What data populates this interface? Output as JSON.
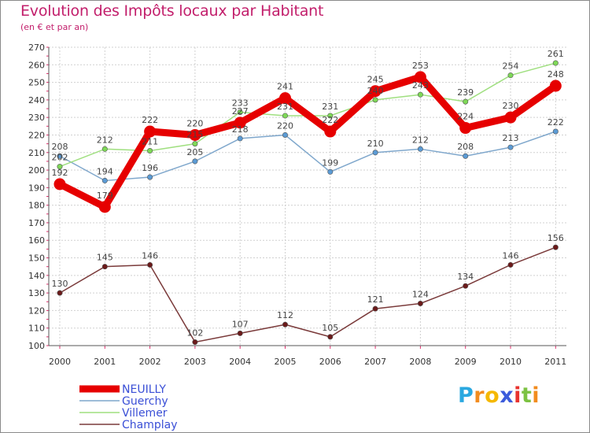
{
  "chart_data": {
    "type": "line",
    "title": "Evolution des Impôts locaux par Habitant",
    "subtitle": "(en € et par an)",
    "xlabel": "",
    "ylabel": "",
    "ylim": [
      100,
      270
    ],
    "yticks": [
      100,
      110,
      120,
      130,
      140,
      150,
      160,
      170,
      180,
      190,
      200,
      210,
      220,
      230,
      240,
      250,
      260,
      270
    ],
    "categories": [
      "2000",
      "2001",
      "2002",
      "2003",
      "2004",
      "2005",
      "2006",
      "2007",
      "2008",
      "2009",
      "2010",
      "2011"
    ],
    "grid": true,
    "legend_position": "bottom-left",
    "series": [
      {
        "name": "Guerchy",
        "color": "#5b9bd5",
        "line_color": "#7fa7cc",
        "values": [
          208,
          194,
          196,
          205,
          218,
          220,
          199,
          210,
          212,
          208,
          213,
          222
        ]
      },
      {
        "name": "Villemer",
        "color": "#7ed957",
        "line_color": "#9fdf7f",
        "values": [
          202,
          212,
          211,
          215,
          233,
          231,
          231,
          240,
          243,
          239,
          254,
          261
        ]
      },
      {
        "name": "Champlay",
        "color": "#6b1a1a",
        "line_color": "#7a3a3a",
        "values": [
          130,
          145,
          146,
          102,
          107,
          112,
          105,
          121,
          124,
          134,
          146,
          156
        ]
      },
      {
        "name": "NEUILLY",
        "color": "#e60000",
        "line_color": "#e60000",
        "values": [
          192,
          179,
          222,
          220,
          227,
          241,
          222,
          245,
          253,
          224,
          230,
          248
        ]
      }
    ],
    "legend_order": [
      "NEUILLY",
      "Guerchy",
      "Villemer",
      "Champlay"
    ]
  },
  "labels": {
    "NEUILLY": [
      "192",
      "179",
      "222",
      "220",
      "227",
      "241",
      "222",
      "245",
      "253",
      "224",
      "230",
      "248"
    ],
    "Guerchy": [
      "208",
      "194",
      "196",
      "205",
      "218",
      "220",
      "199",
      "210",
      "212",
      "208",
      "213",
      "222"
    ],
    "Villemer": [
      "202",
      "212",
      "211",
      "215",
      "233",
      "231",
      "231",
      "240",
      "243",
      "239",
      "254",
      "261"
    ],
    "Champlay": [
      "130",
      "145",
      "146",
      "102",
      "107",
      "112",
      "105",
      "121",
      "124",
      "134",
      "146",
      "156"
    ]
  },
  "brand": {
    "letters": [
      "P",
      "r",
      "o",
      "x",
      "i",
      "t",
      "i"
    ],
    "colors": [
      "#2aa8e0",
      "#f28c1e",
      "#f5b800",
      "#3b5bdb",
      "#e8322e",
      "#7cc242",
      "#f28c1e"
    ]
  }
}
